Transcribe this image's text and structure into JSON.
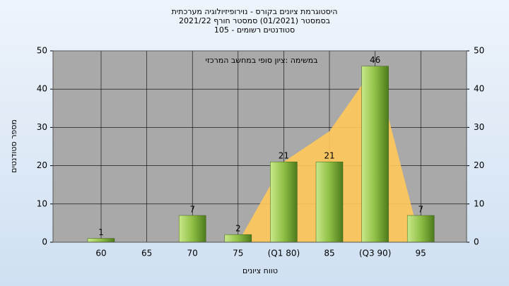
{
  "chart_data": {
    "type": "bar",
    "title": [
      "היסטוגרמת ציונים בקורס - נוירופיזיולוגיה מערכתית",
      "בסמסטר  (01/2021)  סמסטר חורף 2021/22",
      "סטודנטים רשומים - 105"
    ],
    "annotation": "במשימה :ציון סופי במחשב המרכזי",
    "x_label": "טווח ציונים",
    "y_label": "מספר סטודנטים",
    "categories": [
      "60",
      "65",
      "70",
      "75",
      "(Q1 80)",
      "85",
      "(Q3 90)",
      "95"
    ],
    "values": [
      1,
      0,
      7,
      2,
      21,
      21,
      46,
      7
    ],
    "color": "#8fbf45",
    "area": {
      "values": [
        null,
        null,
        null,
        0,
        21,
        29,
        46,
        0
      ],
      "color": "#ffc85a"
    },
    "ylim": [
      0,
      50
    ],
    "yticks": [
      0,
      10,
      20,
      30,
      40,
      50
    ],
    "y2lim": [
      0,
      50
    ],
    "y2ticks": [
      0,
      10,
      20,
      30,
      40,
      50
    ],
    "grid": true
  }
}
